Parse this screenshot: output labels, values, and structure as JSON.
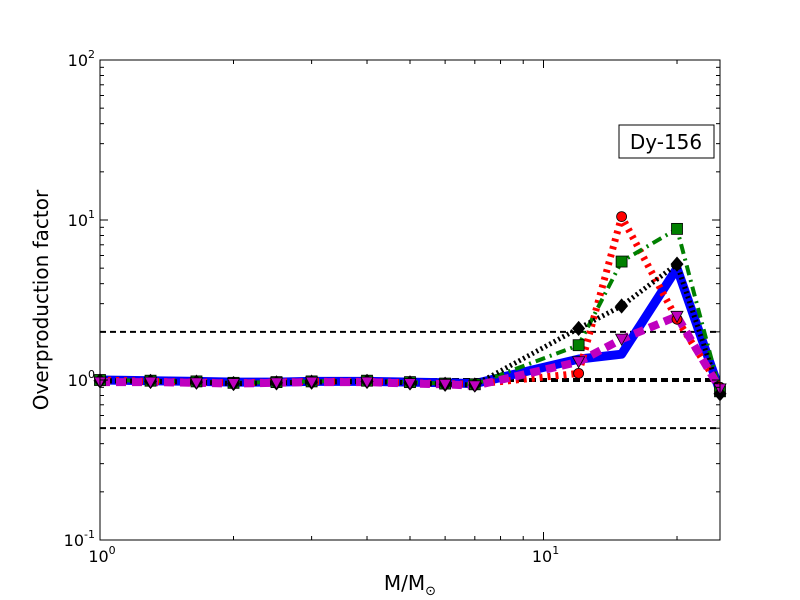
{
  "chart_data": {
    "type": "line",
    "xlabel": "M/M",
    "xlabel_sub": "⊙",
    "ylabel": "Overproduction factor",
    "annotation": "Dy-156",
    "x_scale": "log",
    "y_scale": "log",
    "xlim": [
      1,
      25
    ],
    "ylim": [
      0.1,
      100
    ],
    "x_ticks": [
      {
        "base": "10",
        "exp": "0",
        "value": 1
      },
      {
        "base": "10",
        "exp": "1",
        "value": 10
      }
    ],
    "y_ticks": [
      {
        "base": "10",
        "exp": "-1",
        "value": 0.1
      },
      {
        "base": "10",
        "exp": "0",
        "value": 1
      },
      {
        "base": "10",
        "exp": "1",
        "value": 10
      },
      {
        "base": "10",
        "exp": "2",
        "value": 100
      }
    ],
    "reference_lines": [
      {
        "y": 2,
        "style": "dashed-thin"
      },
      {
        "y": 1,
        "style": "dashed-thick"
      },
      {
        "y": 0.5,
        "style": "dashed-thin"
      }
    ],
    "series": [
      {
        "color": "#ff0000",
        "line": "dotted",
        "marker": "circle",
        "x": [
          1,
          1.3,
          1.65,
          2,
          2.5,
          3,
          4,
          5,
          6,
          7,
          12,
          15,
          20,
          25
        ],
        "y": [
          1.0,
          0.98,
          0.97,
          0.96,
          0.97,
          0.98,
          0.98,
          0.96,
          0.95,
          0.94,
          1.1,
          10.5,
          2.4,
          0.9
        ]
      },
      {
        "color": "#008000",
        "line": "dashdot",
        "marker": "square",
        "x": [
          1,
          1.3,
          1.65,
          2,
          2.5,
          3,
          4,
          5,
          6,
          7,
          12,
          15,
          20,
          25
        ],
        "y": [
          1.0,
          0.99,
          0.98,
          0.96,
          0.97,
          0.98,
          0.99,
          0.97,
          0.95,
          0.94,
          1.65,
          5.5,
          8.8,
          0.85
        ]
      },
      {
        "color": "#000000",
        "line": "dotted",
        "marker": "diamond",
        "x": [
          1,
          1.3,
          1.65,
          2,
          2.5,
          3,
          4,
          5,
          6,
          7,
          12,
          15,
          20,
          25
        ],
        "y": [
          0.99,
          0.98,
          0.97,
          0.95,
          0.96,
          0.97,
          0.98,
          0.96,
          0.94,
          0.93,
          2.1,
          2.9,
          5.3,
          0.82
        ]
      },
      {
        "color": "#0000ff",
        "line": "solid",
        "marker": "none",
        "x": [
          1,
          1.3,
          1.65,
          2,
          2.5,
          3,
          4,
          5,
          6,
          7,
          12,
          15,
          20,
          25
        ],
        "y": [
          1.0,
          0.99,
          0.98,
          0.97,
          0.97,
          0.98,
          0.98,
          0.97,
          0.96,
          0.95,
          1.35,
          1.45,
          5.0,
          0.85
        ]
      },
      {
        "color": "#bf00bf",
        "line": "dashed",
        "marker": "triangle-down",
        "x": [
          1,
          1.3,
          1.65,
          2,
          2.5,
          3,
          4,
          5,
          6,
          7,
          12,
          15,
          20,
          25
        ],
        "y": [
          0.97,
          0.97,
          0.96,
          0.95,
          0.96,
          0.97,
          0.97,
          0.95,
          0.94,
          0.92,
          1.3,
          1.8,
          2.5,
          0.88
        ]
      }
    ]
  }
}
